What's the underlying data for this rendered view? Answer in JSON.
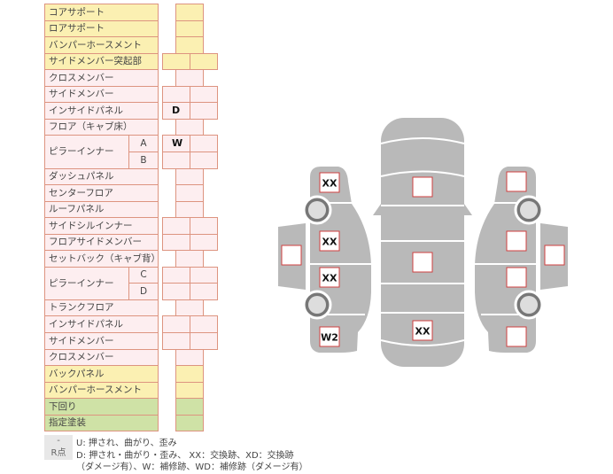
{
  "rows": [
    {
      "label": "コアサポート",
      "tone": "y",
      "cells": 1,
      "values": [
        ""
      ]
    },
    {
      "label": "ロアサポート",
      "tone": "y",
      "cells": 1,
      "values": [
        ""
      ]
    },
    {
      "label": "バンパーホースメント",
      "tone": "y",
      "cells": 1,
      "values": [
        ""
      ]
    },
    {
      "label": "サイドメンバー突起部",
      "tone": "y",
      "cells": 2,
      "values": [
        "",
        ""
      ]
    },
    {
      "label": "クロスメンバー",
      "tone": "p",
      "cells": 1,
      "values": [
        ""
      ]
    },
    {
      "label": "サイドメンバー",
      "tone": "p",
      "cells": 2,
      "values": [
        "",
        ""
      ]
    },
    {
      "label": "インサイドパネル",
      "tone": "p",
      "cells": 2,
      "values": [
        "D",
        ""
      ]
    },
    {
      "label": "フロア（キャブ床）",
      "tone": "p",
      "cells": 1,
      "values": [
        ""
      ]
    },
    {
      "label": "ピラーインナー",
      "sub": "A",
      "tone": "p",
      "cells": 2,
      "values": [
        "W",
        ""
      ]
    },
    {
      "sub": "B",
      "tone": "p",
      "cells": 2,
      "values": [
        "",
        ""
      ]
    },
    {
      "label": "ダッシュパネル",
      "tone": "p",
      "cells": 1,
      "values": [
        ""
      ]
    },
    {
      "label": "センターフロア",
      "tone": "p",
      "cells": 1,
      "values": [
        ""
      ]
    },
    {
      "label": "ルーフパネル",
      "tone": "p",
      "cells": 1,
      "values": [
        ""
      ]
    },
    {
      "label": "サイドシルインナー",
      "tone": "p",
      "cells": 2,
      "values": [
        "",
        ""
      ]
    },
    {
      "label": "フロアサイドメンバー",
      "tone": "p",
      "cells": 2,
      "values": [
        "",
        ""
      ]
    },
    {
      "label": "セットバック（キャブ背）",
      "tone": "p",
      "cells": 1,
      "values": [
        ""
      ]
    },
    {
      "label": "ピラーインナー",
      "sub": "C",
      "tone": "p",
      "cells": 2,
      "values": [
        "",
        ""
      ]
    },
    {
      "sub": "D",
      "tone": "p",
      "cells": 2,
      "values": [
        "",
        ""
      ]
    },
    {
      "label": "トランクフロア",
      "tone": "p",
      "cells": 1,
      "values": [
        ""
      ]
    },
    {
      "label": "インサイドパネル",
      "tone": "p",
      "cells": 2,
      "values": [
        "",
        ""
      ]
    },
    {
      "label": "サイドメンバー",
      "tone": "p",
      "cells": 2,
      "values": [
        "",
        ""
      ]
    },
    {
      "label": "クロスメンバー",
      "tone": "p",
      "cells": 1,
      "values": [
        ""
      ]
    },
    {
      "label": "バックパネル",
      "tone": "y",
      "cells": 1,
      "values": [
        ""
      ]
    },
    {
      "label": "バンパーホースメント",
      "tone": "y",
      "cells": 1,
      "values": [
        ""
      ]
    },
    {
      "label": "下回り",
      "tone": "g",
      "cells": 1,
      "values": [
        ""
      ]
    },
    {
      "label": "指定塗装",
      "tone": "g",
      "cells": 1,
      "values": [
        ""
      ]
    }
  ],
  "legend": [
    {
      "key": "-",
      "text": "U: 押され、曲がり、歪み"
    },
    {
      "key": "R点",
      "text": "D: 押され・曲がり・歪み、 XX：交換跡、XD：交換跡",
      "text2": "（ダメージ有）、W：補修跡、WD：補修跡（ダメージ有）"
    }
  ],
  "diagram": {
    "left": {
      "front_fender": "XX",
      "front_door": "XX",
      "rear_door": "XX",
      "rear_fender": "W2",
      "door_mirror": ""
    },
    "center": {
      "hood": "",
      "roof": "",
      "trunk": "XX"
    },
    "right": {
      "front_fender": "",
      "front_door": "",
      "rear_door": "",
      "rear_fender": "",
      "door_mirror": ""
    }
  },
  "colors": {
    "yellow": "#fbf0b2",
    "pink": "#fdeef0",
    "green": "#cfe2a6",
    "border": "#dd9480",
    "body": "#b9b9b9",
    "marker_border": "#d04040"
  }
}
